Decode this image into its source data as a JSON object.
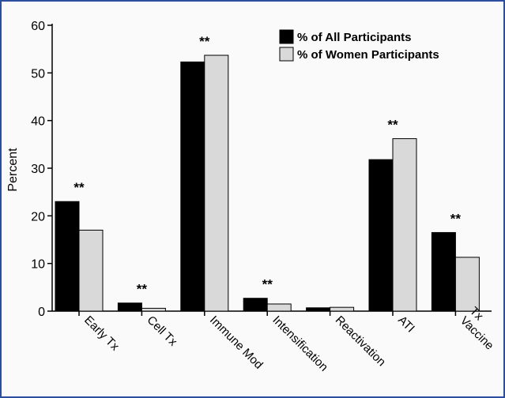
{
  "chart_data": {
    "type": "bar",
    "title": "",
    "xlabel": "",
    "ylabel": "Percent",
    "ylim": [
      0,
      60
    ],
    "yticks": [
      "0",
      "10",
      "20",
      "30",
      "40",
      "50",
      "60"
    ],
    "categories": [
      "Early Tx",
      "Cell Tx",
      "Immune Mod",
      "Intensification",
      "Reactivation",
      "ATI",
      "Tx\nVaccine"
    ],
    "series": [
      {
        "name": "% of All Participants",
        "color": "#000000",
        "values": [
          23.0,
          1.7,
          52.3,
          2.7,
          0.7,
          31.8,
          16.5
        ]
      },
      {
        "name": "% of Women Participants",
        "color": "#d9d9d9",
        "values": [
          17.0,
          0.6,
          53.7,
          1.5,
          0.8,
          36.2,
          11.3
        ]
      }
    ],
    "annotations": [
      "**",
      "**",
      "**",
      "**",
      "",
      "**",
      "**"
    ],
    "legend_position": "top-right",
    "grid": false
  }
}
